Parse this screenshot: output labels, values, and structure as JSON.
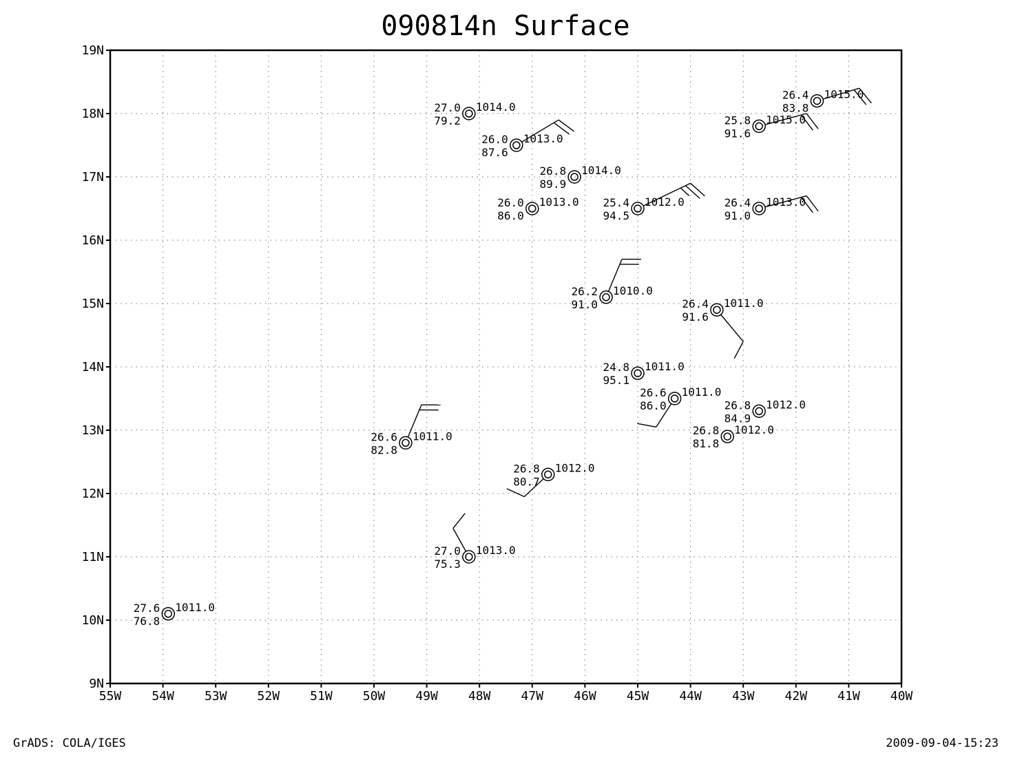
{
  "title": "090814n Surface",
  "footer_left": "GrADS: COLA/IGES",
  "footer_right": "2009-09-04-15:23",
  "map": {
    "lon_range": [
      -55,
      -40
    ],
    "lat_range": [
      9,
      19
    ],
    "x_tick_labels": [
      "55W",
      "54W",
      "53W",
      "52W",
      "51W",
      "50W",
      "49W",
      "48W",
      "47W",
      "46W",
      "45W",
      "44W",
      "43W",
      "42W",
      "41W",
      "40W"
    ],
    "y_tick_labels": [
      "9N",
      "10N",
      "11N",
      "12N",
      "13N",
      "14N",
      "15N",
      "16N",
      "17N",
      "18N",
      "19N"
    ],
    "grid": "dotted",
    "colors": {
      "line": "#000000",
      "grid": "#888888",
      "background": "#ffffff"
    }
  },
  "stations": [
    {
      "lon": -48.2,
      "lat": 18.0,
      "temp": "27.0",
      "rh": "79.2",
      "pres": "1014.0",
      "barb": null
    },
    {
      "lon": -47.3,
      "lat": 17.5,
      "temp": "26.0",
      "rh": "87.6",
      "pres": "1013.0",
      "barb": {
        "to_lon": -46.5,
        "to_lat": 17.9,
        "feathers": 2
      }
    },
    {
      "lon": -46.2,
      "lat": 17.0,
      "temp": "26.8",
      "rh": "89.9",
      "pres": "1014.0",
      "barb": null
    },
    {
      "lon": -47.0,
      "lat": 16.5,
      "temp": "26.0",
      "rh": "86.0",
      "pres": "1013.0",
      "barb": null
    },
    {
      "lon": -45.0,
      "lat": 16.5,
      "temp": "25.4",
      "rh": "94.5",
      "pres": "1012.0",
      "barb": {
        "to_lon": -44.0,
        "to_lat": 16.9,
        "feathers": 3
      }
    },
    {
      "lon": -42.7,
      "lat": 16.5,
      "temp": "26.4",
      "rh": "91.0",
      "pres": "1013.0",
      "barb": {
        "to_lon": -41.8,
        "to_lat": 16.7,
        "feathers": 2
      }
    },
    {
      "lon": -42.7,
      "lat": 17.8,
      "temp": "25.8",
      "rh": "91.6",
      "pres": "1015.0",
      "barb": {
        "to_lon": -41.8,
        "to_lat": 18.0,
        "feathers": 2
      }
    },
    {
      "lon": -41.6,
      "lat": 18.2,
      "temp": "26.4",
      "rh": "83.8",
      "pres": "1015.0",
      "barb": {
        "to_lon": -40.8,
        "to_lat": 18.4,
        "feathers": 2
      }
    },
    {
      "lon": -45.6,
      "lat": 15.1,
      "temp": "26.2",
      "rh": "91.0",
      "pres": "1010.0",
      "barb": {
        "to_lon": -45.3,
        "to_lat": 15.7,
        "feathers": 2
      }
    },
    {
      "lon": -43.5,
      "lat": 14.9,
      "temp": "26.4",
      "rh": "91.6",
      "pres": "1011.0",
      "barb": {
        "to_lon": -43.0,
        "to_lat": 14.4,
        "feathers": 1
      }
    },
    {
      "lon": -45.0,
      "lat": 13.9,
      "temp": "24.8",
      "rh": "95.1",
      "pres": "1011.0",
      "barb": null
    },
    {
      "lon": -44.3,
      "lat": 13.5,
      "temp": "26.6",
      "rh": "86.0",
      "pres": "1011.0",
      "barb": {
        "to_lon": -44.65,
        "to_lat": 13.05,
        "feathers": 1
      }
    },
    {
      "lon": -42.7,
      "lat": 13.3,
      "temp": "26.8",
      "rh": "84.9",
      "pres": "1012.0",
      "barb": null
    },
    {
      "lon": -43.3,
      "lat": 12.9,
      "temp": "26.8",
      "rh": "81.8",
      "pres": "1012.0",
      "barb": null
    },
    {
      "lon": -49.4,
      "lat": 12.8,
      "temp": "26.6",
      "rh": "82.8",
      "pres": "1011.0",
      "barb": {
        "to_lon": -49.1,
        "to_lat": 13.4,
        "feathers": 2
      }
    },
    {
      "lon": -46.7,
      "lat": 12.3,
      "temp": "26.8",
      "rh": "80.7",
      "pres": "1012.0",
      "barb": {
        "to_lon": -47.15,
        "to_lat": 11.95,
        "feathers": 1
      }
    },
    {
      "lon": -48.2,
      "lat": 11.0,
      "temp": "27.0",
      "rh": "75.3",
      "pres": "1013.0",
      "barb": {
        "to_lon": -48.5,
        "to_lat": 11.45,
        "feathers": 1
      }
    },
    {
      "lon": -53.9,
      "lat": 10.1,
      "temp": "27.6",
      "rh": "76.8",
      "pres": "1011.0",
      "barb": null
    }
  ]
}
